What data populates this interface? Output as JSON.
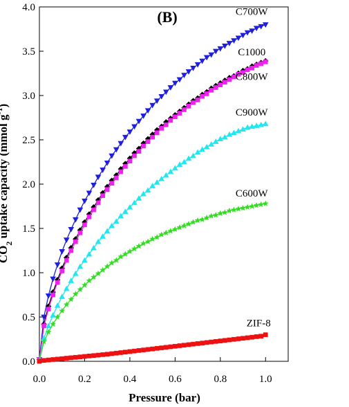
{
  "chart_data": {
    "type": "line",
    "panel_label": "(B)",
    "xlabel": "Pressure (bar)",
    "ylabel": "CO2 uptake capacity (mmol g-1)",
    "xlim": [
      0,
      1.1
    ],
    "ylim": [
      0,
      4.0
    ],
    "x_ticks": [
      "0.0",
      "0.2",
      "0.4",
      "0.6",
      "0.8",
      "1.0"
    ],
    "y_ticks": [
      "0.0",
      "0.5",
      "1.0",
      "1.5",
      "2.0",
      "2.5",
      "3.0",
      "3.5",
      "4.0"
    ],
    "grid": false,
    "x": [
      0.0,
      0.02,
      0.04,
      0.06,
      0.08,
      0.1,
      0.12,
      0.14,
      0.16,
      0.18,
      0.2,
      0.22,
      0.24,
      0.26,
      0.28,
      0.3,
      0.32,
      0.34,
      0.36,
      0.38,
      0.4,
      0.42,
      0.44,
      0.46,
      0.48,
      0.5,
      0.52,
      0.54,
      0.56,
      0.58,
      0.6,
      0.62,
      0.64,
      0.66,
      0.68,
      0.7,
      0.72,
      0.74,
      0.76,
      0.78,
      0.8,
      0.82,
      0.84,
      0.86,
      0.88,
      0.9,
      0.92,
      0.94,
      0.96,
      0.98,
      1.0
    ],
    "series": [
      {
        "name": "C700W",
        "color": "#1f1fdd",
        "marker": "triangle-down",
        "values": [
          0.02,
          0.5,
          0.74,
          0.93,
          1.09,
          1.24,
          1.37,
          1.49,
          1.6,
          1.71,
          1.81,
          1.9,
          1.99,
          2.08,
          2.16,
          2.24,
          2.32,
          2.39,
          2.46,
          2.53,
          2.59,
          2.65,
          2.71,
          2.77,
          2.83,
          2.89,
          2.94,
          2.99,
          3.04,
          3.09,
          3.14,
          3.18,
          3.23,
          3.27,
          3.31,
          3.35,
          3.39,
          3.43,
          3.46,
          3.5,
          3.53,
          3.56,
          3.59,
          3.62,
          3.65,
          3.68,
          3.71,
          3.73,
          3.76,
          3.78,
          3.8
        ]
      },
      {
        "name": "C1000",
        "color": "#000000",
        "marker": "diamond",
        "values": [
          0.02,
          0.42,
          0.62,
          0.78,
          0.92,
          1.05,
          1.17,
          1.28,
          1.38,
          1.48,
          1.57,
          1.66,
          1.74,
          1.82,
          1.9,
          1.97,
          2.04,
          2.1,
          2.17,
          2.23,
          2.29,
          2.35,
          2.4,
          2.46,
          2.51,
          2.56,
          2.61,
          2.65,
          2.7,
          2.74,
          2.78,
          2.82,
          2.86,
          2.9,
          2.94,
          2.97,
          3.01,
          3.04,
          3.08,
          3.11,
          3.14,
          3.17,
          3.2,
          3.22,
          3.25,
          3.28,
          3.3,
          3.33,
          3.35,
          3.37,
          3.39
        ]
      },
      {
        "name": "C800W",
        "color": "#ee22ee",
        "marker": "square",
        "values": [
          0.02,
          0.4,
          0.59,
          0.75,
          0.89,
          1.02,
          1.14,
          1.25,
          1.35,
          1.45,
          1.54,
          1.63,
          1.71,
          1.79,
          1.87,
          1.94,
          2.01,
          2.07,
          2.14,
          2.2,
          2.26,
          2.32,
          2.37,
          2.43,
          2.48,
          2.53,
          2.58,
          2.63,
          2.67,
          2.72,
          2.76,
          2.8,
          2.84,
          2.88,
          2.92,
          2.95,
          2.99,
          3.02,
          3.06,
          3.09,
          3.12,
          3.15,
          3.18,
          3.21,
          3.24,
          3.26,
          3.29,
          3.31,
          3.34,
          3.36,
          3.38
        ]
      },
      {
        "name": "C900W",
        "color": "#22e6f0",
        "marker": "triangle-up",
        "values": [
          0.01,
          0.26,
          0.4,
          0.52,
          0.63,
          0.73,
          0.82,
          0.91,
          0.99,
          1.07,
          1.14,
          1.21,
          1.28,
          1.35,
          1.41,
          1.47,
          1.53,
          1.58,
          1.64,
          1.69,
          1.74,
          1.79,
          1.84,
          1.89,
          1.93,
          1.98,
          2.02,
          2.06,
          2.1,
          2.14,
          2.18,
          2.22,
          2.25,
          2.29,
          2.32,
          2.36,
          2.39,
          2.42,
          2.45,
          2.48,
          2.51,
          2.53,
          2.56,
          2.58,
          2.6,
          2.62,
          2.64,
          2.65,
          2.66,
          2.67,
          2.68
        ]
      },
      {
        "name": "C600W",
        "color": "#33dd22",
        "marker": "star",
        "values": [
          0.01,
          0.22,
          0.33,
          0.42,
          0.5,
          0.57,
          0.64,
          0.7,
          0.76,
          0.81,
          0.86,
          0.91,
          0.95,
          0.99,
          1.03,
          1.07,
          1.11,
          1.14,
          1.18,
          1.21,
          1.24,
          1.27,
          1.3,
          1.33,
          1.35,
          1.38,
          1.4,
          1.43,
          1.45,
          1.47,
          1.49,
          1.51,
          1.53,
          1.55,
          1.57,
          1.59,
          1.6,
          1.62,
          1.64,
          1.65,
          1.67,
          1.68,
          1.7,
          1.71,
          1.72,
          1.73,
          1.74,
          1.75,
          1.76,
          1.77,
          1.78
        ]
      },
      {
        "name": "ZIF-8",
        "color": "#ee1111",
        "marker": "square",
        "values": [
          0.0,
          0.01,
          0.015,
          0.02,
          0.025,
          0.03,
          0.035,
          0.04,
          0.045,
          0.05,
          0.055,
          0.06,
          0.065,
          0.07,
          0.075,
          0.08,
          0.086,
          0.092,
          0.098,
          0.104,
          0.11,
          0.116,
          0.122,
          0.128,
          0.134,
          0.14,
          0.146,
          0.152,
          0.158,
          0.164,
          0.17,
          0.176,
          0.182,
          0.188,
          0.194,
          0.2,
          0.206,
          0.212,
          0.218,
          0.224,
          0.23,
          0.236,
          0.242,
          0.248,
          0.254,
          0.26,
          0.266,
          0.272,
          0.278,
          0.284,
          0.3
        ]
      }
    ]
  }
}
